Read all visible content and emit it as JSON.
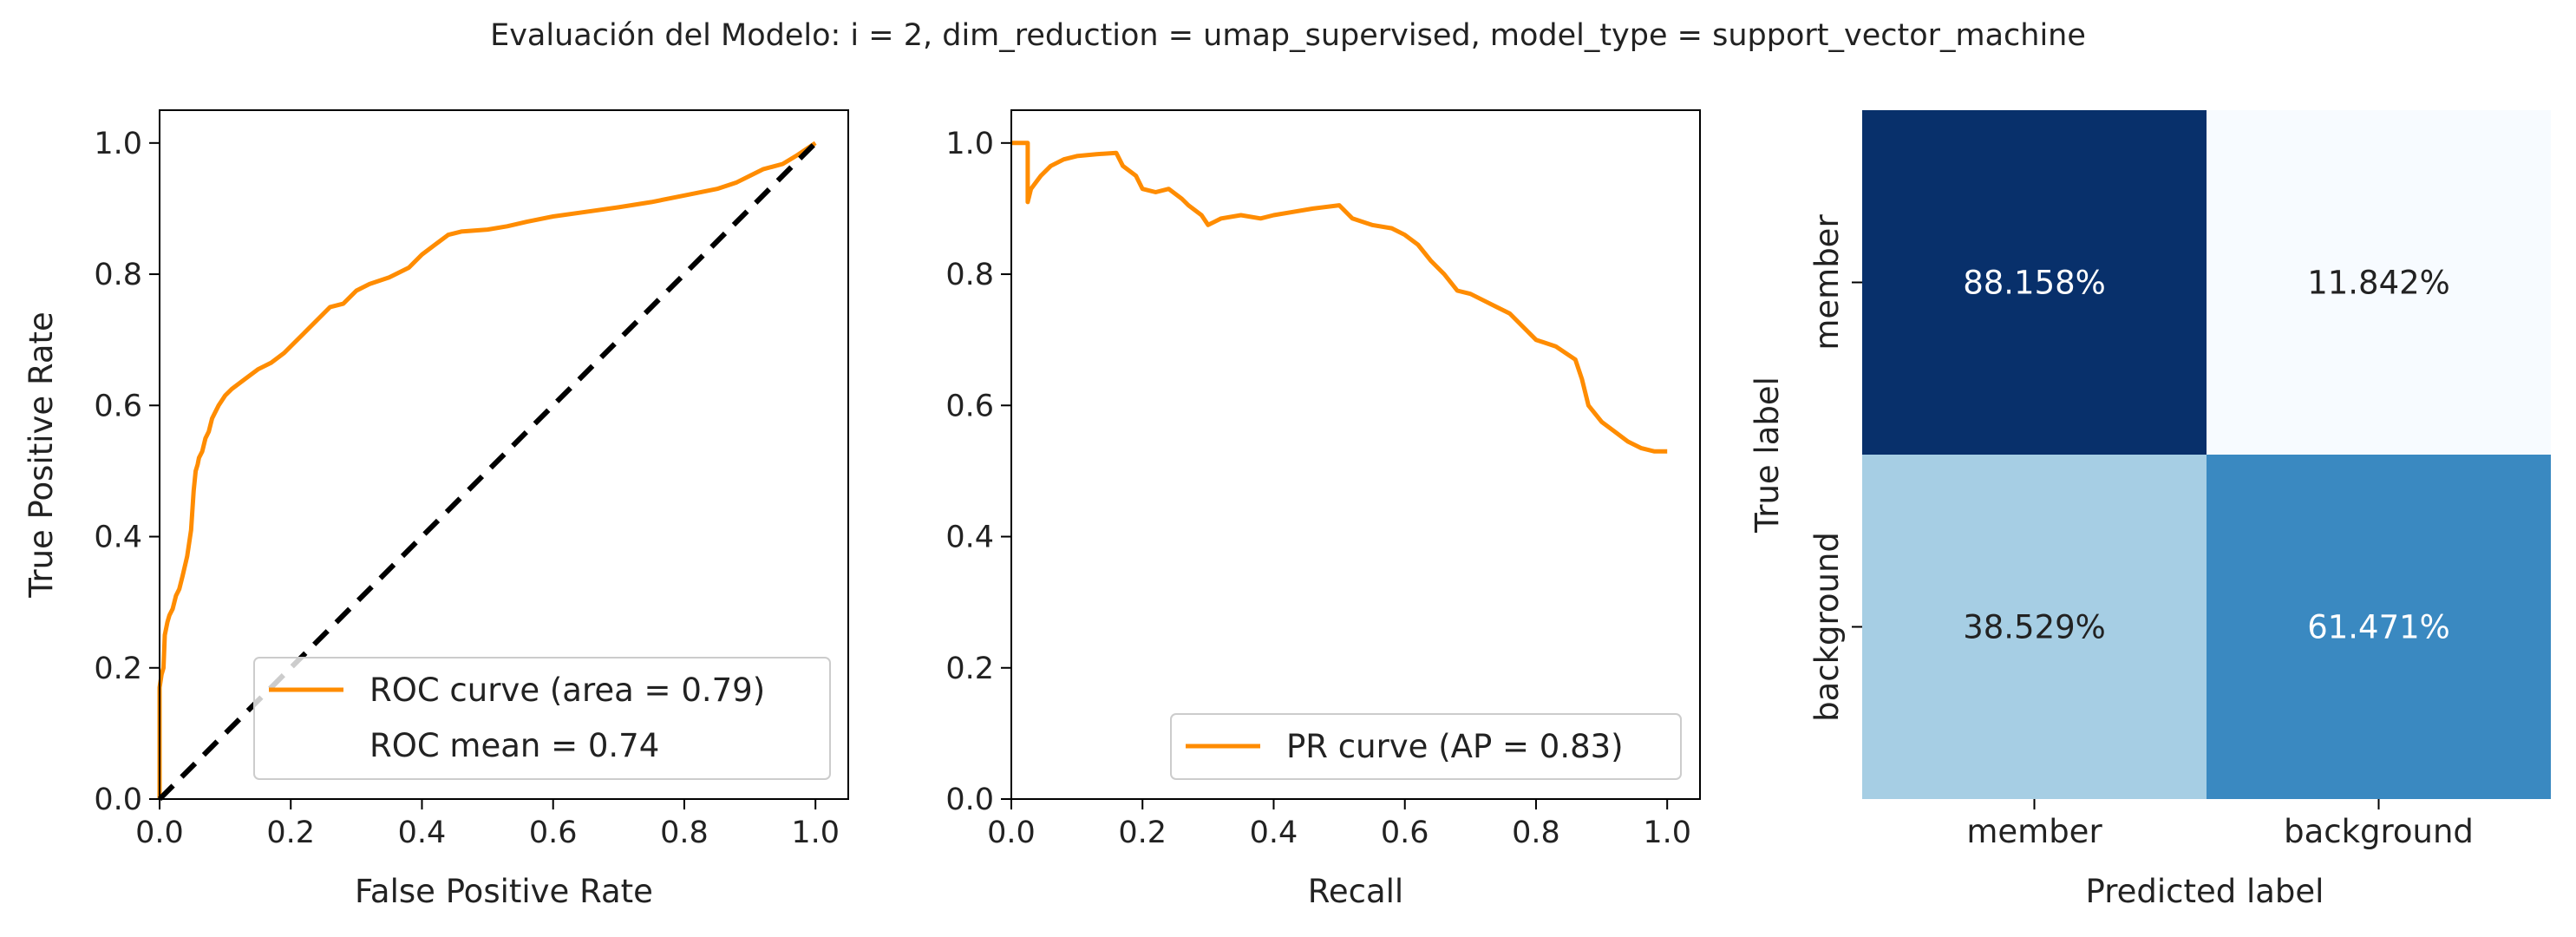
{
  "title": "Evaluación del Modelo: i = 2, dim_reduction = umap_supervised, model_type = support_vector_machine",
  "chart_data": [
    {
      "type": "line",
      "xlabel": "False Positive Rate",
      "ylabel": "True Positive Rate",
      "xlim": [
        0.0,
        1.05
      ],
      "ylim": [
        0.0,
        1.05
      ],
      "xticks": [
        "0.0",
        "0.2",
        "0.4",
        "0.6",
        "0.8",
        "1.0"
      ],
      "yticks": [
        "0.0",
        "0.2",
        "0.4",
        "0.6",
        "0.8",
        "1.0"
      ],
      "legend_position": "lower-right",
      "grid": false,
      "series": [
        {
          "name": "ROC curve (area = 0.79)",
          "color": "#ff8c00",
          "x": [
            0.0,
            0.0,
            0.003,
            0.006,
            0.008,
            0.012,
            0.015,
            0.02,
            0.025,
            0.03,
            0.035,
            0.042,
            0.048,
            0.052,
            0.055,
            0.058,
            0.06,
            0.065,
            0.07,
            0.075,
            0.08,
            0.09,
            0.1,
            0.11,
            0.13,
            0.15,
            0.17,
            0.19,
            0.2,
            0.22,
            0.24,
            0.26,
            0.28,
            0.3,
            0.32,
            0.35,
            0.38,
            0.4,
            0.42,
            0.44,
            0.46,
            0.5,
            0.53,
            0.56,
            0.6,
            0.65,
            0.7,
            0.75,
            0.8,
            0.85,
            0.88,
            0.9,
            0.92,
            0.95,
            0.97,
            1.0
          ],
          "y": [
            0.0,
            0.17,
            0.19,
            0.2,
            0.25,
            0.27,
            0.28,
            0.29,
            0.31,
            0.32,
            0.34,
            0.37,
            0.41,
            0.47,
            0.5,
            0.51,
            0.52,
            0.53,
            0.55,
            0.56,
            0.58,
            0.6,
            0.615,
            0.625,
            0.64,
            0.655,
            0.665,
            0.68,
            0.69,
            0.71,
            0.73,
            0.75,
            0.755,
            0.775,
            0.785,
            0.795,
            0.81,
            0.83,
            0.845,
            0.86,
            0.865,
            0.868,
            0.873,
            0.88,
            0.888,
            0.895,
            0.902,
            0.91,
            0.92,
            0.93,
            0.94,
            0.95,
            0.96,
            0.968,
            0.98,
            1.0
          ]
        },
        {
          "name": "ROC mean = 0.74",
          "color": "#ffffff",
          "x": [],
          "y": []
        },
        {
          "name": "",
          "color": "#000000",
          "dashed": true,
          "x": [
            0.0,
            1.0
          ],
          "y": [
            0.0,
            1.0
          ]
        }
      ]
    },
    {
      "type": "line",
      "xlabel": "Recall",
      "ylabel": "",
      "xlim": [
        0.0,
        1.05
      ],
      "ylim": [
        0.0,
        1.05
      ],
      "xticks": [
        "0.0",
        "0.2",
        "0.4",
        "0.6",
        "0.8",
        "1.0"
      ],
      "yticks": [
        "0.0",
        "0.2",
        "0.4",
        "0.6",
        "0.8",
        "1.0"
      ],
      "legend_position": "lower-right",
      "grid": false,
      "series": [
        {
          "name": "PR curve (AP = 0.83)",
          "color": "#ff8c00",
          "x": [
            0.0,
            0.025,
            0.025,
            0.03,
            0.045,
            0.06,
            0.08,
            0.1,
            0.13,
            0.16,
            0.17,
            0.19,
            0.2,
            0.22,
            0.24,
            0.26,
            0.27,
            0.29,
            0.3,
            0.32,
            0.35,
            0.38,
            0.4,
            0.43,
            0.46,
            0.5,
            0.52,
            0.55,
            0.58,
            0.6,
            0.62,
            0.64,
            0.66,
            0.68,
            0.7,
            0.72,
            0.74,
            0.76,
            0.78,
            0.8,
            0.83,
            0.86,
            0.87,
            0.88,
            0.9,
            0.92,
            0.94,
            0.96,
            0.98,
            1.0
          ],
          "y": [
            1.0,
            1.0,
            0.91,
            0.93,
            0.95,
            0.965,
            0.975,
            0.98,
            0.983,
            0.985,
            0.965,
            0.95,
            0.93,
            0.925,
            0.93,
            0.915,
            0.905,
            0.89,
            0.875,
            0.885,
            0.89,
            0.885,
            0.89,
            0.895,
            0.9,
            0.905,
            0.885,
            0.875,
            0.87,
            0.86,
            0.845,
            0.82,
            0.8,
            0.775,
            0.77,
            0.76,
            0.75,
            0.74,
            0.72,
            0.7,
            0.69,
            0.67,
            0.64,
            0.6,
            0.575,
            0.56,
            0.545,
            0.535,
            0.53,
            0.53
          ]
        }
      ]
    },
    {
      "type": "heatmap",
      "xlabel": "Predicted label",
      "ylabel": "True label",
      "x_categories": [
        "member",
        "background"
      ],
      "y_categories": [
        "member",
        "background"
      ],
      "values": [
        [
          88.158,
          11.842
        ],
        [
          38.529,
          61.471
        ]
      ],
      "cell_labels": [
        [
          "88.158%",
          "11.842%"
        ],
        [
          "38.529%",
          "61.471%"
        ]
      ],
      "cell_colors": [
        [
          "#08306b",
          "#f7fbff"
        ],
        [
          "#a6cee4",
          "#3a89c1"
        ]
      ],
      "text_colors": [
        [
          "#ffffff",
          "#222222"
        ],
        [
          "#222222",
          "#ffffff"
        ]
      ]
    }
  ]
}
